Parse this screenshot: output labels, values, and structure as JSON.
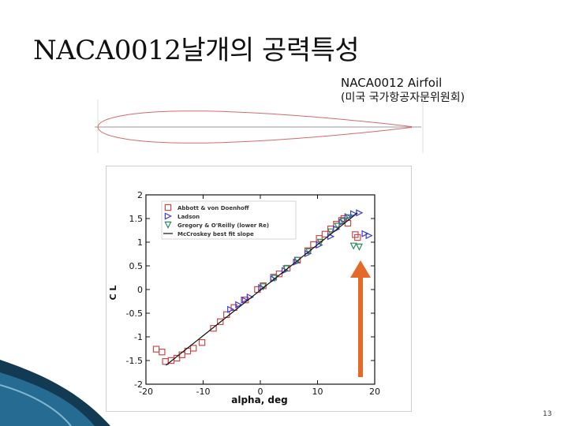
{
  "slide": {
    "title": "NACA0012날개의 공력특성",
    "caption_line1": "NACA0012 Airfoil",
    "caption_line2": "(미국 국가항공자문위원회)",
    "page_number": "13"
  },
  "colors": {
    "airfoil": "#d66a6a",
    "abbott": "#c84b4b",
    "ladson": "#3b3bd6",
    "gregory": "#2d8a5c",
    "fit_line": "#111111",
    "arrow": "#e56a2a",
    "wave_dark": "#123a52",
    "wave_light": "#2d7ea8"
  },
  "icons": {
    "arrow": "up-arrow-icon",
    "wave": "corner-wave-decoration"
  },
  "chart_data": {
    "type": "scatter",
    "title": "",
    "xlabel": "alpha, deg",
    "ylabel": "C L",
    "xlim": [
      -20,
      20
    ],
    "ylim": [
      -2,
      2
    ],
    "xticks": [
      "-20",
      "-10",
      "0",
      "10",
      "20"
    ],
    "yticks": [
      "-2",
      "-1.5",
      "-1",
      "-0.5",
      "0",
      "0.5",
      "1",
      "1.5",
      "2"
    ],
    "grid": false,
    "legend_position": "top-left",
    "series": [
      {
        "name": "Abbott & von Doenhoff",
        "marker": "square",
        "x": [
          -18.2,
          -17.2,
          -16.6,
          -15.6,
          -14.6,
          -13.7,
          -12.7,
          -11.7,
          -10.2,
          -8.2,
          -7.0,
          -5.9,
          -4.6,
          -2.6,
          -0.5,
          0.5,
          2.3,
          3.3,
          4.7,
          6.5,
          8.3,
          9.3,
          10.3,
          11.3,
          12.3,
          13.3,
          14.2,
          14.6,
          15.3,
          16.6,
          17.0
        ],
        "y": [
          -1.26,
          -1.32,
          -1.52,
          -1.5,
          -1.45,
          -1.38,
          -1.3,
          -1.24,
          -1.12,
          -0.82,
          -0.68,
          -0.53,
          -0.38,
          -0.22,
          0.0,
          0.08,
          0.26,
          0.33,
          0.45,
          0.62,
          0.82,
          0.95,
          1.08,
          1.17,
          1.28,
          1.38,
          1.46,
          1.5,
          1.4,
          1.16,
          1.1
        ]
      },
      {
        "name": "Ladson",
        "marker": "triangle-right",
        "x": [
          -5.2,
          -3.8,
          -2.8,
          -1.8,
          0.2,
          2.3,
          4.3,
          6.3,
          8.3,
          10.3,
          12.3,
          13.3,
          14.3,
          15.3,
          16.3,
          17.3,
          18.3,
          19.0
        ],
        "y": [
          -0.42,
          -0.32,
          -0.22,
          -0.16,
          0.04,
          0.22,
          0.4,
          0.58,
          0.76,
          0.94,
          1.12,
          1.28,
          1.42,
          1.54,
          1.6,
          1.62,
          1.18,
          1.14
        ]
      },
      {
        "name": "Gregory & O'Reilly (lower Re)",
        "marker": "triangle-down",
        "x": [
          0.5,
          2.5,
          4.5,
          6.5,
          8.5,
          10.5,
          12.3,
          13.5,
          14.5,
          15.5,
          16.3,
          17.3
        ],
        "y": [
          0.06,
          0.24,
          0.44,
          0.62,
          0.8,
          1.0,
          1.22,
          1.34,
          1.44,
          1.52,
          0.92,
          0.9
        ]
      },
      {
        "name": "McCroskey best fit slope",
        "type": "line",
        "x": [
          -16.5,
          17.0
        ],
        "y": [
          -1.6,
          1.62
        ]
      }
    ]
  }
}
